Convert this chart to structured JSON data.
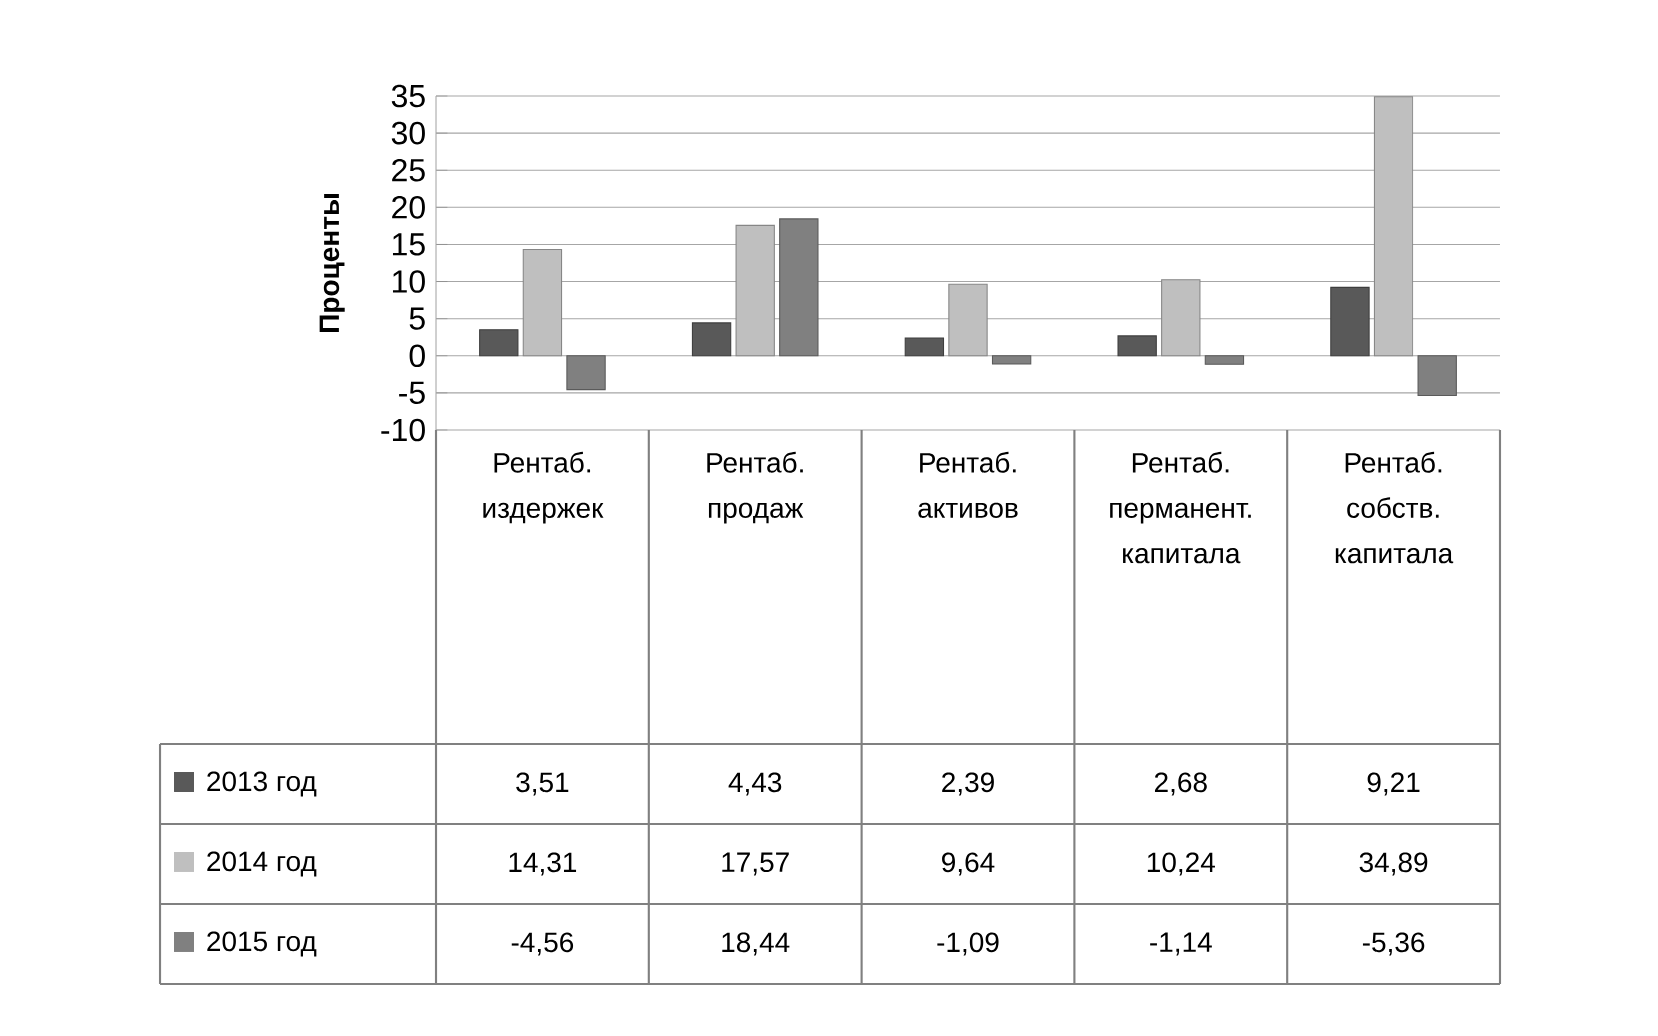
{
  "chart_data": {
    "type": "bar",
    "ylabel": "Проценты",
    "categories": [
      "Рентаб. издержек",
      "Рентаб. продаж",
      "Рентаб. активов",
      "Рентаб. перманент. капитала",
      "Рентаб. собств. капитала"
    ],
    "series": [
      {
        "name": "2013 год",
        "color": "#595959",
        "values": [
          3.51,
          4.43,
          2.39,
          2.68,
          9.21
        ],
        "value_labels": [
          "3,51",
          "4,43",
          "2,39",
          "2,68",
          "9,21"
        ]
      },
      {
        "name": "2014 год",
        "color": "#bfbfbf",
        "values": [
          14.31,
          17.57,
          9.64,
          10.24,
          34.89
        ],
        "value_labels": [
          "14,31",
          "17,57",
          "9,64",
          "10,24",
          "34,89"
        ]
      },
      {
        "name": "2015 год",
        "color": "#808080",
        "values": [
          -4.56,
          18.44,
          -1.09,
          -1.14,
          -5.36
        ],
        "value_labels": [
          "-4,56",
          "18,44",
          "-1,09",
          "-1,14",
          "-5,36"
        ]
      }
    ],
    "ylim": [
      -10,
      35
    ],
    "yticks": [
      -10,
      -5,
      0,
      5,
      10,
      15,
      20,
      25,
      30,
      35
    ],
    "grid": "y",
    "legend": "bottom"
  }
}
